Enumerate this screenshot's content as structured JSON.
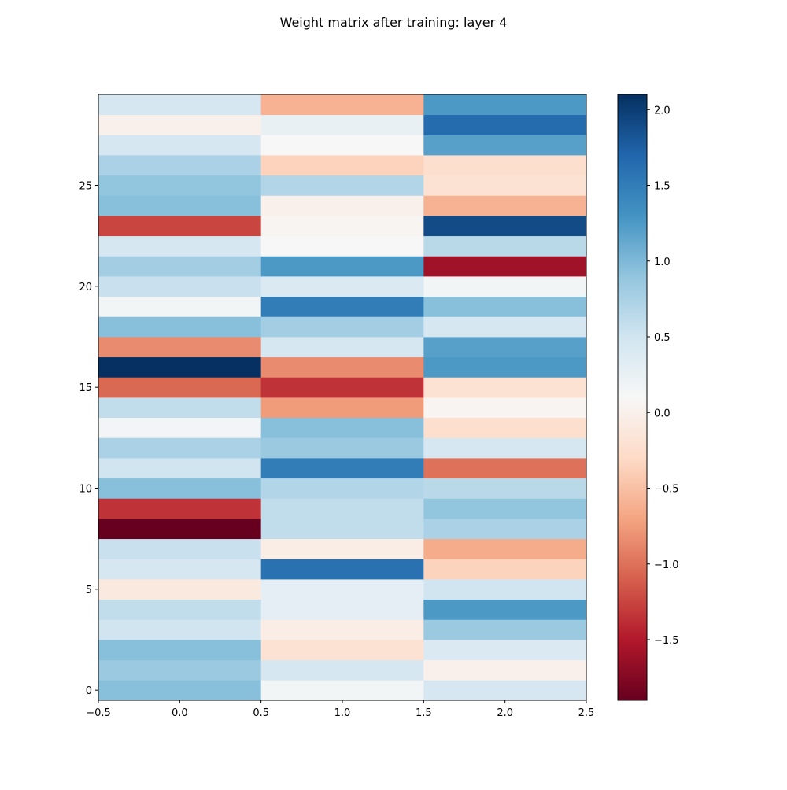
{
  "chart_data": {
    "type": "heatmap",
    "title": "Weight matrix after training: layer 4",
    "xlabel": "",
    "ylabel": "",
    "xlim": [
      -0.5,
      2.5
    ],
    "ylim": [
      -0.5,
      29.5
    ],
    "x_ticks": [
      -0.5,
      0.0,
      0.5,
      1.0,
      1.5,
      2.0,
      2.5
    ],
    "x_tick_labels": [
      "−0.5",
      "0.0",
      "0.5",
      "1.0",
      "1.5",
      "2.0",
      "2.5"
    ],
    "y_ticks": [
      0,
      5,
      10,
      15,
      20,
      25
    ],
    "y_tick_labels": [
      "0",
      "5",
      "10",
      "15",
      "20",
      "25"
    ],
    "colormap": "RdBu",
    "vmin": -1.9,
    "vmax": 2.1,
    "colorbar_ticks": [
      -1.5,
      -1.0,
      -0.5,
      0.0,
      0.5,
      1.0,
      1.5,
      2.0
    ],
    "colorbar_tick_labels": [
      "−1.5",
      "−1.0",
      "−0.5",
      "0.0",
      "0.5",
      "1.0",
      "1.5",
      "2.0"
    ],
    "grid": false,
    "rows": 30,
    "columns": 3,
    "values": [
      [
        0.95,
        0.15,
        0.45
      ],
      [
        0.85,
        0.45,
        0.0
      ],
      [
        0.95,
        -0.2,
        0.4
      ],
      [
        0.5,
        -0.05,
        0.85
      ],
      [
        0.6,
        0.3,
        1.25
      ],
      [
        -0.1,
        0.3,
        0.5
      ],
      [
        0.45,
        1.6,
        -0.35
      ],
      [
        0.55,
        -0.05,
        -0.65
      ],
      [
        -1.9,
        0.6,
        0.75
      ],
      [
        -1.35,
        0.6,
        0.9
      ],
      [
        0.95,
        0.7,
        0.65
      ],
      [
        0.5,
        1.5,
        -1.0
      ],
      [
        0.75,
        0.85,
        0.45
      ],
      [
        0.15,
        0.95,
        -0.25
      ],
      [
        0.6,
        -0.75,
        0.05
      ],
      [
        -1.05,
        -1.35,
        -0.2
      ],
      [
        2.1,
        -0.85,
        1.25
      ],
      [
        -0.85,
        0.45,
        1.2
      ],
      [
        0.95,
        0.8,
        0.45
      ],
      [
        0.15,
        1.5,
        0.95
      ],
      [
        0.55,
        0.4,
        0.15
      ],
      [
        0.8,
        1.25,
        -1.6
      ],
      [
        0.45,
        0.1,
        0.65
      ],
      [
        -1.25,
        0.05,
        1.9
      ],
      [
        0.95,
        0.0,
        -0.6
      ],
      [
        0.9,
        0.7,
        -0.2
      ],
      [
        0.75,
        -0.35,
        -0.25
      ],
      [
        0.45,
        0.1,
        1.2
      ],
      [
        0.0,
        0.25,
        1.65
      ],
      [
        0.45,
        -0.6,
        1.25
      ]
    ]
  }
}
